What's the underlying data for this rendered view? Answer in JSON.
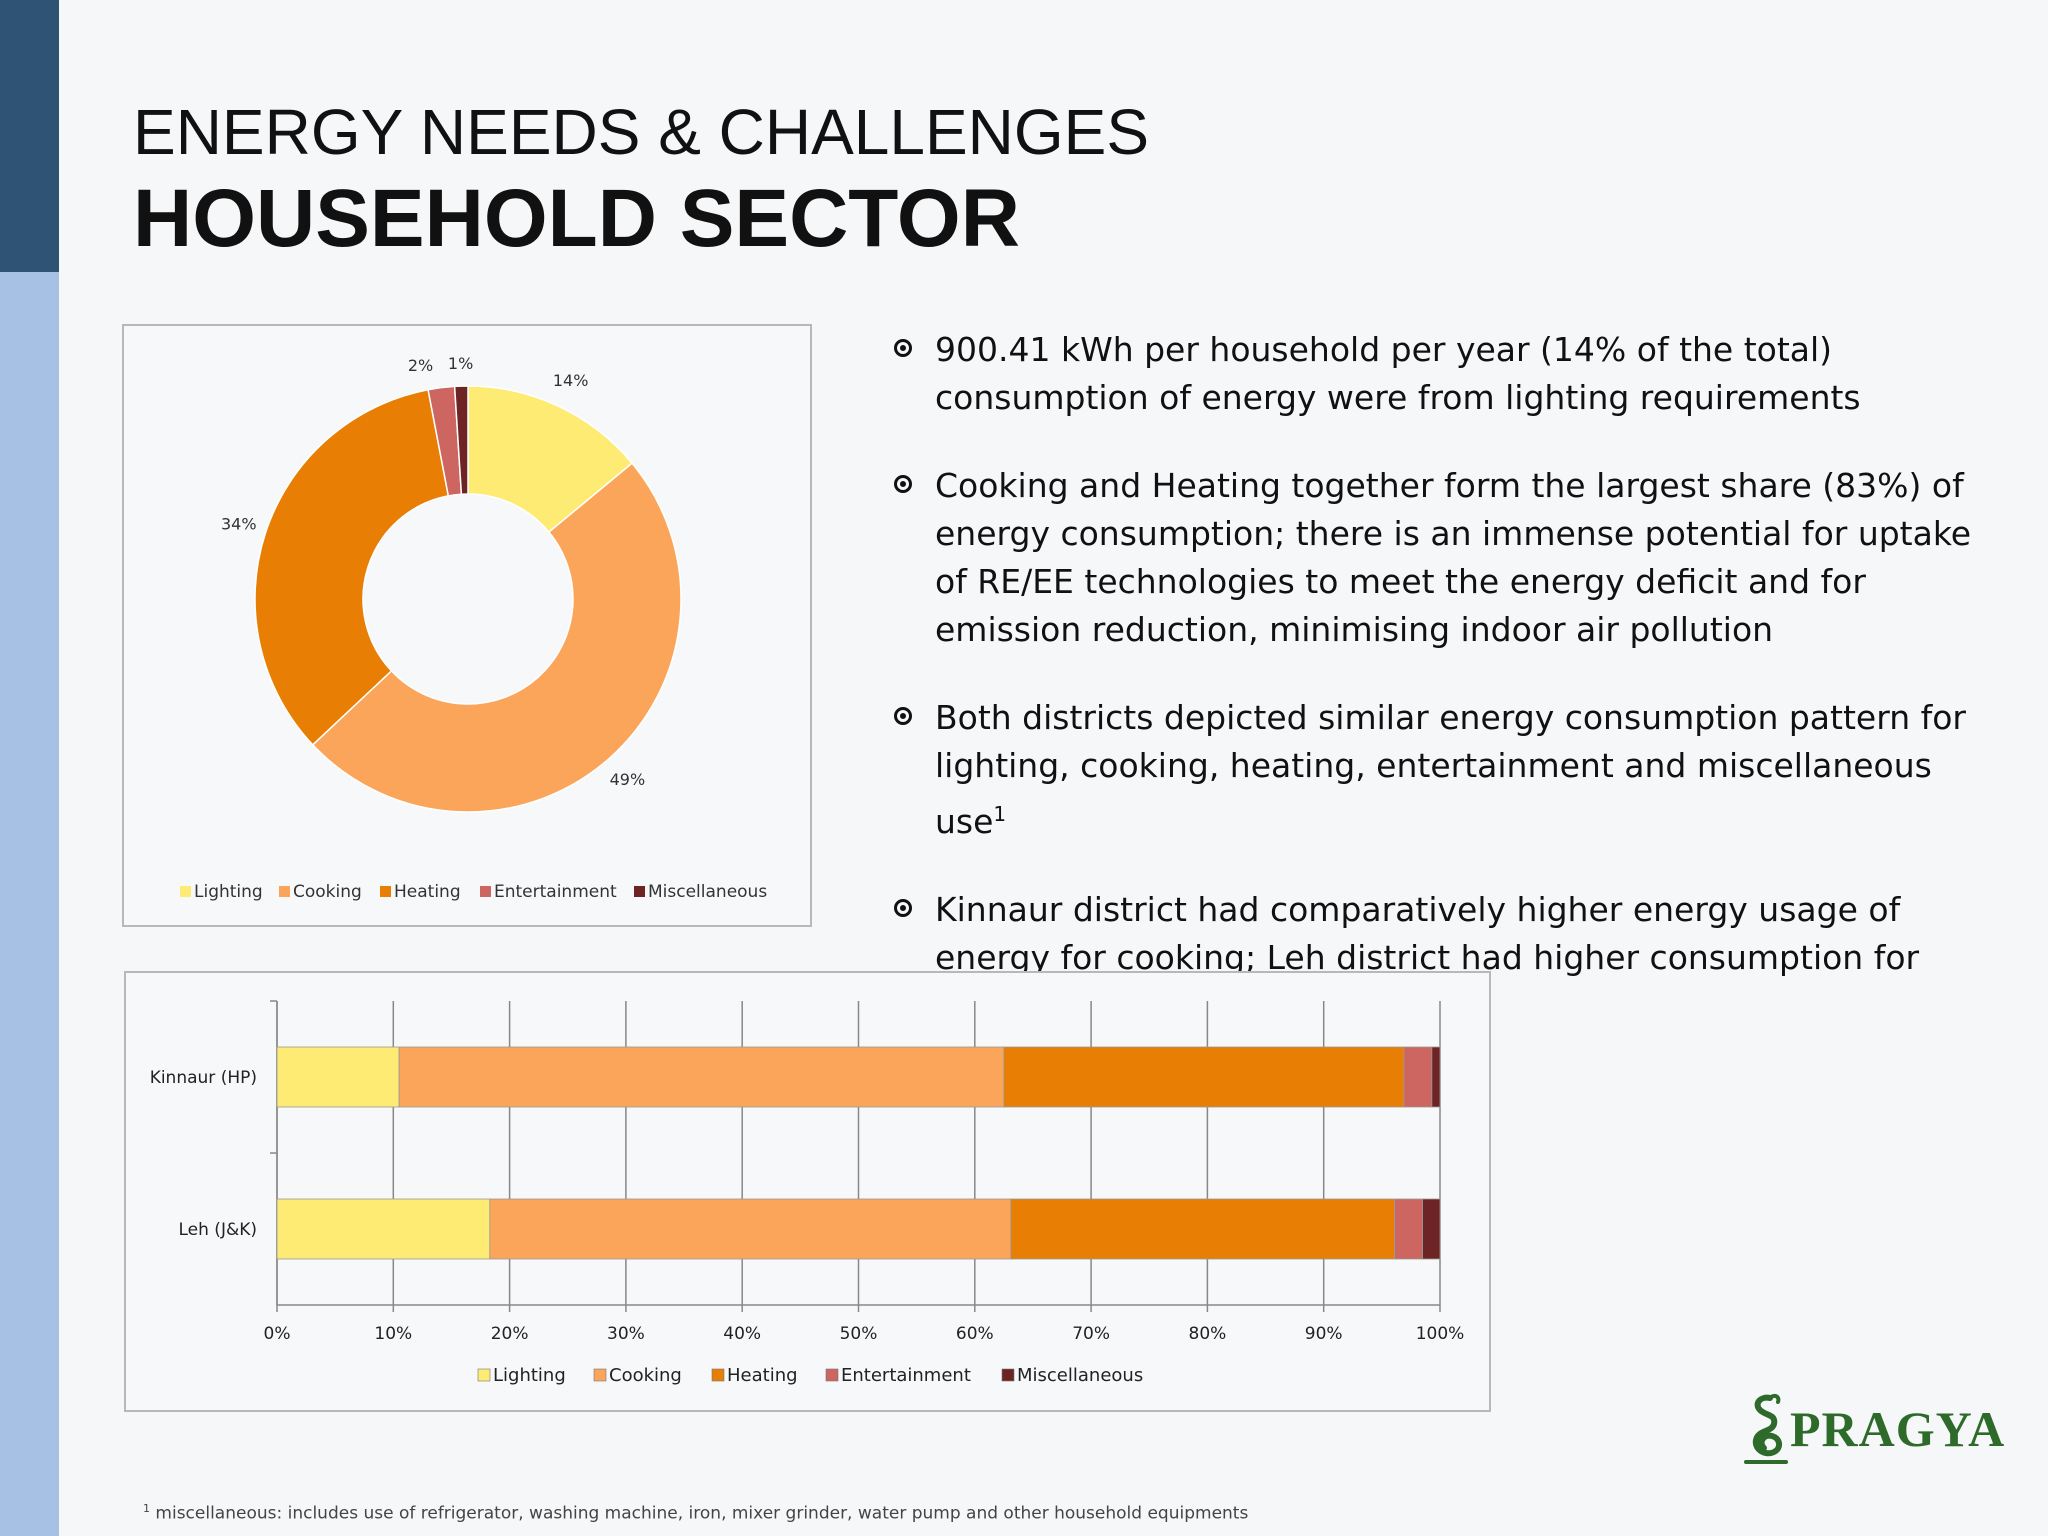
{
  "slide": {
    "title_line1": "ENERGY NEEDS & CHALLENGES",
    "title_line2": "HOUSEHOLD SECTOR"
  },
  "bullets": [
    {
      "text": "900.41 kWh per household per year (14% of the total) consumption of energy were from lighting requirements",
      "sup": ""
    },
    {
      "text": "Cooking and Heating together form the largest share (83%) of energy consumption; there is an immense potential for uptake of RE/EE technologies to meet the energy deficit and for emission reduction, minimising indoor air pollution",
      "sup": ""
    },
    {
      "text": "Both districts depicted similar energy consumption pattern for lighting, cooking, heating, entertainment and miscellaneous use",
      "sup": "1"
    },
    {
      "text": "Kinnaur district had comparatively higher energy usage of energy for cooking; Leh district had higher consumption for lighting",
      "sup": ""
    }
  ],
  "footnote": {
    "marker": "1",
    "text": "miscellaneous: includes use of refrigerator, washing machine, iron, mixer grinder, water pump and other household equipments"
  },
  "logo": {
    "text": "PRAGYA",
    "color": "#2e6b2a"
  },
  "colors": {
    "dark_bar": "#2f5375",
    "light_bar": "#a7c1e4",
    "Lighting": "#fdeb74",
    "Cooking": "#fba55a",
    "Heating": "#e87e04",
    "Entertainment": "#cd6661",
    "Miscellaneous": "#6e2424"
  },
  "chart_data": [
    {
      "type": "donut",
      "categories": [
        "Lighting",
        "Cooking",
        "Heating",
        "Entertainment",
        "Miscellaneous"
      ],
      "values": [
        14,
        49,
        34,
        2,
        1
      ],
      "labels": [
        "14%",
        "49%",
        "34%",
        "2%",
        "1%"
      ],
      "legend": "bottom"
    },
    {
      "type": "bar",
      "orientation": "horizontal",
      "stacked": true,
      "categories": [
        "Kinnaur (HP)",
        "Leh (J&K)"
      ],
      "series": [
        {
          "name": "Lighting",
          "values": [
            10.5,
            18.3
          ]
        },
        {
          "name": "Cooking",
          "values": [
            52.0,
            44.8
          ]
        },
        {
          "name": "Heating",
          "values": [
            34.4,
            33.0
          ]
        },
        {
          "name": "Entertainment",
          "values": [
            2.4,
            2.4
          ]
        },
        {
          "name": "Miscellaneous",
          "values": [
            0.7,
            1.5
          ]
        }
      ],
      "xlim": [
        0,
        100
      ],
      "xticks": [
        "0%",
        "10%",
        "20%",
        "30%",
        "40%",
        "50%",
        "60%",
        "70%",
        "80%",
        "90%",
        "100%"
      ],
      "grid": true,
      "legend": "bottom"
    }
  ]
}
